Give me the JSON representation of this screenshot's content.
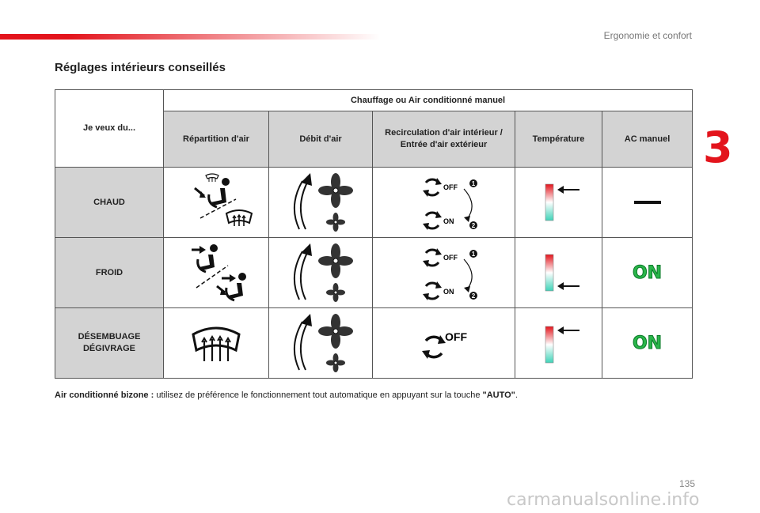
{
  "header": {
    "section_title": "Ergonomie et confort",
    "chapter_number": "3",
    "accent_color": "#e3141c"
  },
  "heading": "Réglages intérieurs conseillés",
  "table": {
    "corner_label": "Je veux du...",
    "group_header": "Chauffage ou Air conditionné manuel",
    "columns": [
      "Répartition d'air",
      "Débit d'air",
      "Recirculation d'air intérieur / Entrée d'air extérieur",
      "Température",
      "AC manuel"
    ],
    "rows": [
      {
        "label_line1": "CHAUD",
        "label_line2": "",
        "distribution_icon": "feet-and-windscreen-airflow-icon",
        "flow_icon": "fan-speed-increase-icon",
        "recirc_off": "OFF",
        "recirc_on": "ON",
        "recirc_step1": "1",
        "recirc_step2": "2",
        "temperature": "high",
        "ac_symbol": "—"
      },
      {
        "label_line1": "FROID",
        "label_line2": "",
        "distribution_icon": "face-and-feet-airflow-icon",
        "flow_icon": "fan-speed-increase-icon",
        "recirc_off": "OFF",
        "recirc_on": "ON",
        "recirc_step1": "1",
        "recirc_step2": "2",
        "temperature": "low",
        "ac_symbol": "ON"
      },
      {
        "label_line1": "DÉSEMBUAGE",
        "label_line2": "DÉGIVRAGE",
        "distribution_icon": "windscreen-demist-icon",
        "flow_icon": "fan-speed-increase-icon",
        "recirc_off": "OFF",
        "temperature": "high",
        "ac_symbol": "ON"
      }
    ]
  },
  "footnote": {
    "label": "Air conditionné bizone :",
    "text_before": " utilisez de préférence le fonctionnement tout automatique en appuyant sur la touche ",
    "key": "\"AUTO\"",
    "text_after": "."
  },
  "page_number": "135",
  "watermark": "carmanualsonline.info"
}
